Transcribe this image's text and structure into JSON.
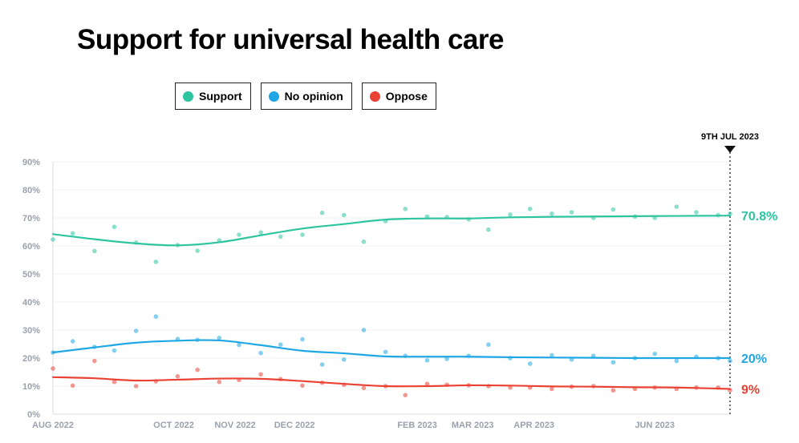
{
  "page": {
    "title": "Support for universal health care"
  },
  "legend": [
    {
      "label": "Support",
      "color": "#2ec4a0"
    },
    {
      "label": "No opinion",
      "color": "#1ea7e4"
    },
    {
      "label": "Oppose",
      "color": "#ea4335"
    }
  ],
  "chart_data": {
    "type": "scatter",
    "title": "Support for universal health care",
    "x_range": [
      "2022-08-01",
      "2023-07-09"
    ],
    "ylim": [
      0,
      90
    ],
    "y_ticks": [
      0,
      10,
      20,
      30,
      40,
      50,
      60,
      70,
      80,
      90
    ],
    "y_tick_format": "%",
    "x_ticks": [
      {
        "date": "2022-08-01",
        "label": "AUG 2022"
      },
      {
        "date": "2022-10-01",
        "label": "OCT 2022"
      },
      {
        "date": "2022-11-01",
        "label": "NOV 2022"
      },
      {
        "date": "2022-12-01",
        "label": "DEC 2022"
      },
      {
        "date": "2023-02-01",
        "label": "FEB 2023"
      },
      {
        "date": "2023-03-01",
        "label": "MAR 2023"
      },
      {
        "date": "2023-04-01",
        "label": "APR 2023"
      },
      {
        "date": "2023-06-01",
        "label": "JUN 2023"
      }
    ],
    "grid": true,
    "marker": {
      "date": "2023-07-09",
      "label": "9TH JUL 2023"
    },
    "series": [
      {
        "name": "Support",
        "color": "#2ec4a0",
        "end_label": "70.8%",
        "points": [
          [
            "2022-08-01",
            62.3
          ],
          [
            "2022-08-11",
            64.5
          ],
          [
            "2022-08-22",
            58.2
          ],
          [
            "2022-09-01",
            66.8
          ],
          [
            "2022-09-12",
            61.2
          ],
          [
            "2022-09-22",
            54.3
          ],
          [
            "2022-10-03",
            60.3
          ],
          [
            "2022-10-13",
            58.3
          ],
          [
            "2022-10-24",
            62.0
          ],
          [
            "2022-11-03",
            64.0
          ],
          [
            "2022-11-14",
            64.8
          ],
          [
            "2022-11-24",
            63.3
          ],
          [
            "2022-12-05",
            64.0
          ],
          [
            "2022-12-15",
            71.8
          ],
          [
            "2022-12-26",
            71.0
          ],
          [
            "2023-01-05",
            61.5
          ],
          [
            "2023-01-16",
            68.8
          ],
          [
            "2023-01-26",
            73.2
          ],
          [
            "2023-02-06",
            70.5
          ],
          [
            "2023-02-16",
            70.3
          ],
          [
            "2023-02-27",
            69.5
          ],
          [
            "2023-03-09",
            65.8
          ],
          [
            "2023-03-20",
            71.2
          ],
          [
            "2023-03-30",
            73.2
          ],
          [
            "2023-04-10",
            71.5
          ],
          [
            "2023-04-20",
            72.0
          ],
          [
            "2023-05-01",
            70.0
          ],
          [
            "2023-05-11",
            73.0
          ],
          [
            "2023-05-22",
            70.5
          ],
          [
            "2023-06-01",
            70.0
          ],
          [
            "2023-06-12",
            74.0
          ],
          [
            "2023-06-22",
            72.0
          ],
          [
            "2023-07-03",
            71.0
          ],
          [
            "2023-07-09",
            71.5
          ]
        ],
        "trend": [
          [
            "2022-08-01",
            64.2
          ],
          [
            "2022-08-22",
            62.4
          ],
          [
            "2022-09-12",
            60.9
          ],
          [
            "2022-10-03",
            60.2
          ],
          [
            "2022-10-24",
            61.3
          ],
          [
            "2022-11-14",
            63.8
          ],
          [
            "2022-12-05",
            66.2
          ],
          [
            "2022-12-26",
            67.8
          ],
          [
            "2023-01-16",
            69.4
          ],
          [
            "2023-02-06",
            69.8
          ],
          [
            "2023-02-27",
            69.8
          ],
          [
            "2023-03-20",
            70.2
          ],
          [
            "2023-04-10",
            70.4
          ],
          [
            "2023-05-01",
            70.5
          ],
          [
            "2023-05-22",
            70.6
          ],
          [
            "2023-06-12",
            70.7
          ],
          [
            "2023-07-09",
            70.8
          ]
        ]
      },
      {
        "name": "No opinion",
        "color": "#1ea7e4",
        "end_label": "20%",
        "points": [
          [
            "2022-08-01",
            22.0
          ],
          [
            "2022-08-11",
            26.0
          ],
          [
            "2022-08-22",
            24.0
          ],
          [
            "2022-09-01",
            22.7
          ],
          [
            "2022-09-12",
            29.7
          ],
          [
            "2022-09-22",
            34.8
          ],
          [
            "2022-10-03",
            26.8
          ],
          [
            "2022-10-13",
            26.5
          ],
          [
            "2022-10-24",
            27.2
          ],
          [
            "2022-11-03",
            24.7
          ],
          [
            "2022-11-14",
            21.8
          ],
          [
            "2022-11-24",
            24.8
          ],
          [
            "2022-12-05",
            26.7
          ],
          [
            "2022-12-15",
            17.7
          ],
          [
            "2022-12-26",
            19.5
          ],
          [
            "2023-01-05",
            30.0
          ],
          [
            "2023-01-16",
            22.2
          ],
          [
            "2023-01-26",
            20.8
          ],
          [
            "2023-02-06",
            19.2
          ],
          [
            "2023-02-16",
            19.7
          ],
          [
            "2023-02-27",
            20.8
          ],
          [
            "2023-03-09",
            24.8
          ],
          [
            "2023-03-20",
            20.0
          ],
          [
            "2023-03-30",
            18.0
          ],
          [
            "2023-04-10",
            21.0
          ],
          [
            "2023-04-20",
            19.5
          ],
          [
            "2023-05-01",
            20.8
          ],
          [
            "2023-05-11",
            18.5
          ],
          [
            "2023-05-22",
            20.0
          ],
          [
            "2023-06-01",
            21.5
          ],
          [
            "2023-06-12",
            19.0
          ],
          [
            "2023-06-22",
            20.5
          ],
          [
            "2023-07-03",
            20.0
          ],
          [
            "2023-07-09",
            19.0
          ]
        ],
        "trend": [
          [
            "2022-08-01",
            22.0
          ],
          [
            "2022-08-22",
            23.8
          ],
          [
            "2022-09-12",
            25.5
          ],
          [
            "2022-10-03",
            26.2
          ],
          [
            "2022-10-24",
            26.3
          ],
          [
            "2022-11-14",
            24.6
          ],
          [
            "2022-12-05",
            22.6
          ],
          [
            "2022-12-26",
            21.7
          ],
          [
            "2023-01-16",
            20.6
          ],
          [
            "2023-02-06",
            20.5
          ],
          [
            "2023-02-27",
            20.5
          ],
          [
            "2023-03-20",
            20.3
          ],
          [
            "2023-04-10",
            20.2
          ],
          [
            "2023-05-01",
            20.1
          ],
          [
            "2023-05-22",
            20.0
          ],
          [
            "2023-06-12",
            20.0
          ],
          [
            "2023-07-09",
            20.0
          ]
        ]
      },
      {
        "name": "Oppose",
        "color": "#ea4335",
        "end_label": "9%",
        "points": [
          [
            "2022-08-01",
            16.3
          ],
          [
            "2022-08-11",
            10.2
          ],
          [
            "2022-08-22",
            19.0
          ],
          [
            "2022-09-01",
            11.5
          ],
          [
            "2022-09-12",
            10.0
          ],
          [
            "2022-09-22",
            11.7
          ],
          [
            "2022-10-03",
            13.5
          ],
          [
            "2022-10-13",
            15.8
          ],
          [
            "2022-10-24",
            11.5
          ],
          [
            "2022-11-03",
            12.2
          ],
          [
            "2022-11-14",
            14.2
          ],
          [
            "2022-11-24",
            12.5
          ],
          [
            "2022-12-05",
            10.2
          ],
          [
            "2022-12-15",
            11.2
          ],
          [
            "2022-12-26",
            10.5
          ],
          [
            "2023-01-05",
            9.3
          ],
          [
            "2023-01-16",
            10.0
          ],
          [
            "2023-01-26",
            6.8
          ],
          [
            "2023-02-06",
            10.8
          ],
          [
            "2023-02-16",
            10.5
          ],
          [
            "2023-02-27",
            10.3
          ],
          [
            "2023-03-09",
            10.0
          ],
          [
            "2023-03-20",
            9.5
          ],
          [
            "2023-03-30",
            9.5
          ],
          [
            "2023-04-10",
            9.0
          ],
          [
            "2023-04-20",
            9.8
          ],
          [
            "2023-05-01",
            10.0
          ],
          [
            "2023-05-11",
            8.5
          ],
          [
            "2023-05-22",
            9.0
          ],
          [
            "2023-06-01",
            9.5
          ],
          [
            "2023-06-12",
            9.0
          ],
          [
            "2023-06-22",
            9.5
          ],
          [
            "2023-07-03",
            9.5
          ],
          [
            "2023-07-09",
            8.5
          ]
        ],
        "trend": [
          [
            "2022-08-01",
            13.2
          ],
          [
            "2022-08-22",
            12.8
          ],
          [
            "2022-09-12",
            12.0
          ],
          [
            "2022-10-03",
            12.3
          ],
          [
            "2022-10-24",
            12.7
          ],
          [
            "2022-11-14",
            12.6
          ],
          [
            "2022-12-05",
            11.8
          ],
          [
            "2022-12-26",
            10.8
          ],
          [
            "2023-01-16",
            10.0
          ],
          [
            "2023-02-06",
            10.0
          ],
          [
            "2023-02-27",
            10.3
          ],
          [
            "2023-03-20",
            10.2
          ],
          [
            "2023-04-10",
            9.9
          ],
          [
            "2023-05-01",
            9.8
          ],
          [
            "2023-05-22",
            9.6
          ],
          [
            "2023-06-12",
            9.5
          ],
          [
            "2023-07-09",
            9.0
          ]
        ]
      }
    ]
  }
}
